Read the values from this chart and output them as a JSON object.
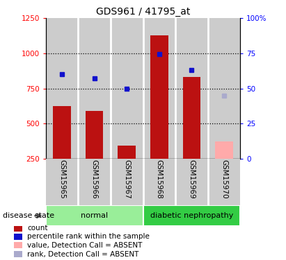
{
  "title": "GDS961 / 41795_at",
  "samples": [
    "GSM15965",
    "GSM15966",
    "GSM15967",
    "GSM15968",
    "GSM15969",
    "GSM15970"
  ],
  "bar_values": [
    625,
    590,
    345,
    1130,
    830,
    370
  ],
  "bar_colors": [
    "#bb1111",
    "#bb1111",
    "#bb1111",
    "#bb1111",
    "#bb1111",
    "#ffaaaa"
  ],
  "rank_values": [
    850,
    820,
    750,
    995,
    880,
    700
  ],
  "rank_colors": [
    "#1111cc",
    "#1111cc",
    "#1111cc",
    "#1111cc",
    "#1111cc",
    "#aaaacc"
  ],
  "ylim_left": [
    250,
    1250
  ],
  "yticks_left": [
    250,
    500,
    750,
    1000,
    1250
  ],
  "yticks_right_labels": [
    "0",
    "25",
    "50",
    "75",
    "100%"
  ],
  "yticks_right_vals": [
    0,
    25,
    50,
    75,
    100
  ],
  "dotted_lines": [
    500,
    750,
    1000
  ],
  "groups": [
    {
      "label": "normal",
      "indices": [
        0,
        1,
        2
      ],
      "color": "#99ee99"
    },
    {
      "label": "diabetic nephropathy",
      "indices": [
        3,
        4,
        5
      ],
      "color": "#33cc44"
    }
  ],
  "disease_state_label": "disease state",
  "legend_items": [
    {
      "color": "#bb1111",
      "label": "count",
      "marker": "square"
    },
    {
      "color": "#1111cc",
      "label": "percentile rank within the sample",
      "marker": "square"
    },
    {
      "color": "#ffaaaa",
      "label": "value, Detection Call = ABSENT",
      "marker": "square"
    },
    {
      "color": "#aaaacc",
      "label": "rank, Detection Call = ABSENT",
      "marker": "square"
    }
  ],
  "bar_width": 0.55,
  "sample_bg_color": "#cccccc",
  "plot_bg_color": "#ffffff",
  "separator_color": "#ffffff"
}
